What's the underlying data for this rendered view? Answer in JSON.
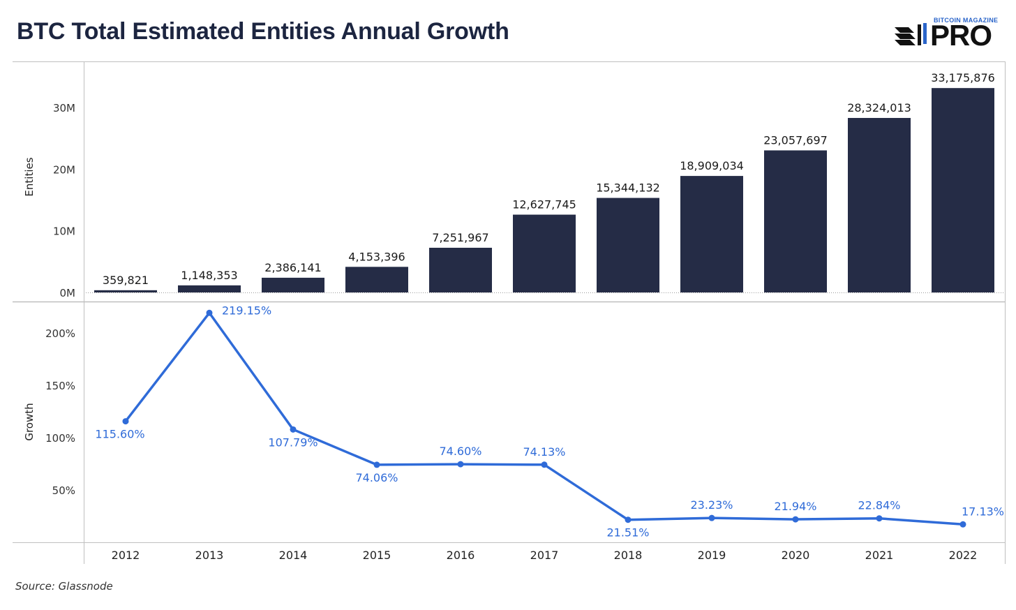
{
  "header": {
    "title": "BTC Total Estimated Entities Annual Growth",
    "logo_top_text": "BITCOIN MAGAZINE",
    "logo_main_text": "PRO"
  },
  "footer": {
    "source": "Source: Glassnode"
  },
  "colors": {
    "bar": "#252c46",
    "line": "#2f6bd8",
    "axis": "#bfbfbf",
    "title": "#1c2540",
    "logo_accent": "#2a64c9"
  },
  "chart_data": [
    {
      "type": "bar",
      "categories": [
        "2012",
        "2013",
        "2014",
        "2015",
        "2016",
        "2017",
        "2018",
        "2019",
        "2020",
        "2021",
        "2022"
      ],
      "values": [
        359821,
        1148353,
        2386141,
        4153396,
        7251967,
        12627745,
        15344132,
        18909034,
        23057697,
        28324013,
        33175876
      ],
      "value_labels": [
        "359,821",
        "1,148,353",
        "2,386,141",
        "4,153,396",
        "7,251,967",
        "12,627,745",
        "15,344,132",
        "18,909,034",
        "23,057,697",
        "28,324,013",
        "33,175,876"
      ],
      "ylabel": "Entities",
      "ylim": [
        0,
        37500000
      ],
      "yticks": [
        0,
        10000000,
        20000000,
        30000000
      ],
      "ytick_labels": [
        "0M",
        "10M",
        "20M",
        "30M"
      ],
      "grid": false
    },
    {
      "type": "line",
      "categories": [
        "2012",
        "2013",
        "2014",
        "2015",
        "2016",
        "2017",
        "2018",
        "2019",
        "2020",
        "2021",
        "2022"
      ],
      "values": [
        115.6,
        219.15,
        107.79,
        74.06,
        74.6,
        74.13,
        21.51,
        23.23,
        21.94,
        22.84,
        17.13
      ],
      "value_labels": [
        "115.60%",
        "219.15%",
        "107.79%",
        "74.06%",
        "74.60%",
        "74.13%",
        "21.51%",
        "23.23%",
        "21.94%",
        "22.84%",
        "17.13%"
      ],
      "ylabel": "Growth",
      "ylim": [
        0,
        230
      ],
      "yticks": [
        50,
        100,
        150,
        200
      ],
      "ytick_labels": [
        "50%",
        "100%",
        "150%",
        "200%"
      ],
      "grid": false
    }
  ]
}
